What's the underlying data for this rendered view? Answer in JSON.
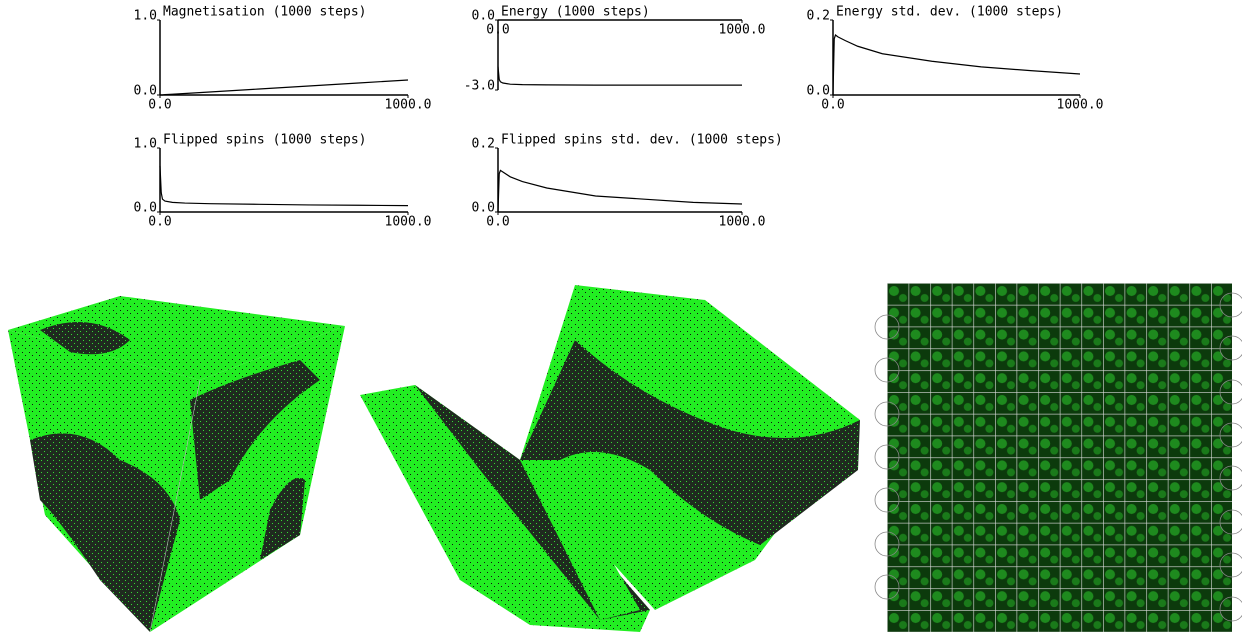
{
  "chart_data": [
    {
      "type": "line",
      "title": "Magnetisation (1000 steps)",
      "x": [
        0,
        5,
        10,
        20,
        50,
        100,
        200,
        400,
        600,
        800,
        1000
      ],
      "values": [
        0.0,
        0.0,
        0.0,
        0.005,
        0.01,
        0.02,
        0.04,
        0.08,
        0.12,
        0.16,
        0.2
      ],
      "color": "#000000",
      "xlim": [
        0,
        1000
      ],
      "xticks": [
        {
          "value": 0,
          "label": "0.0"
        },
        {
          "value": 1000,
          "label": "1000.0"
        }
      ],
      "ylim": [
        0,
        1
      ],
      "yticks": [
        {
          "value": 0,
          "label": "0.0"
        },
        {
          "value": 1,
          "label": "1.0"
        }
      ]
    },
    {
      "type": "line",
      "title": "Energy (1000 steps)",
      "x": [
        0,
        5,
        10,
        20,
        50,
        100,
        200,
        400,
        600,
        800,
        1000
      ],
      "values": [
        -2.0,
        -2.55,
        -2.65,
        -2.7,
        -2.75,
        -2.77,
        -2.78,
        -2.79,
        -2.79,
        -2.79,
        -2.79
      ],
      "color": "#000000",
      "xlim": [
        0,
        1000
      ],
      "xticks": [
        {
          "value": 0,
          "label": "0.0"
        },
        {
          "value": 1000,
          "label": "1000.0"
        }
      ],
      "ylim": [
        -3,
        0
      ],
      "yticks": [
        {
          "value": -3,
          "label": "-3.0"
        },
        {
          "value": 0,
          "label": "0.0"
        }
      ]
    },
    {
      "type": "line",
      "title": "Energy std. dev. (1000 steps)",
      "x": [
        0,
        5,
        10,
        20,
        50,
        100,
        200,
        400,
        600,
        800,
        1000
      ],
      "values": [
        0.0,
        0.15,
        0.16,
        0.155,
        0.145,
        0.13,
        0.11,
        0.09,
        0.075,
        0.065,
        0.056
      ],
      "color": "#000000",
      "xlim": [
        0,
        1000
      ],
      "xticks": [
        {
          "value": 0,
          "label": "0.0"
        },
        {
          "value": 1000,
          "label": "1000.0"
        }
      ],
      "ylim": [
        0,
        0.2
      ],
      "yticks": [
        {
          "value": 0,
          "label": "0.0"
        },
        0.2
      ]
    },
    {
      "type": "line",
      "title": "Flipped spins (1000 steps)",
      "x": [
        0,
        5,
        10,
        20,
        50,
        100,
        200,
        400,
        600,
        800,
        1000
      ],
      "values": [
        0.72,
        0.3,
        0.2,
        0.17,
        0.15,
        0.14,
        0.13,
        0.12,
        0.11,
        0.105,
        0.1
      ],
      "color": "#000000",
      "xlim": [
        0,
        1000
      ],
      "xticks": [
        {
          "value": 0,
          "label": "0.0"
        },
        {
          "value": 1000,
          "label": "1000.0"
        }
      ],
      "ylim": [
        0,
        1
      ],
      "yticks": [
        {
          "value": 0,
          "label": "0.0"
        },
        {
          "value": 1,
          "label": "1.0"
        }
      ]
    },
    {
      "type": "line",
      "title": "Flipped spins std. dev. (1000 steps)",
      "x": [
        0,
        5,
        10,
        20,
        50,
        100,
        200,
        400,
        600,
        800,
        1000
      ],
      "values": [
        0.0,
        0.12,
        0.13,
        0.125,
        0.11,
        0.095,
        0.075,
        0.05,
        0.04,
        0.03,
        0.025
      ],
      "color": "#000000",
      "xlim": [
        0,
        1000
      ],
      "xticks": [
        {
          "value": 0,
          "label": "0.0"
        },
        {
          "value": 1000,
          "label": "1000.0"
        }
      ],
      "ylim": [
        0,
        0.2
      ],
      "yticks": [
        {
          "value": 0,
          "label": "0.0"
        },
        0.2
      ]
    }
  ]
}
